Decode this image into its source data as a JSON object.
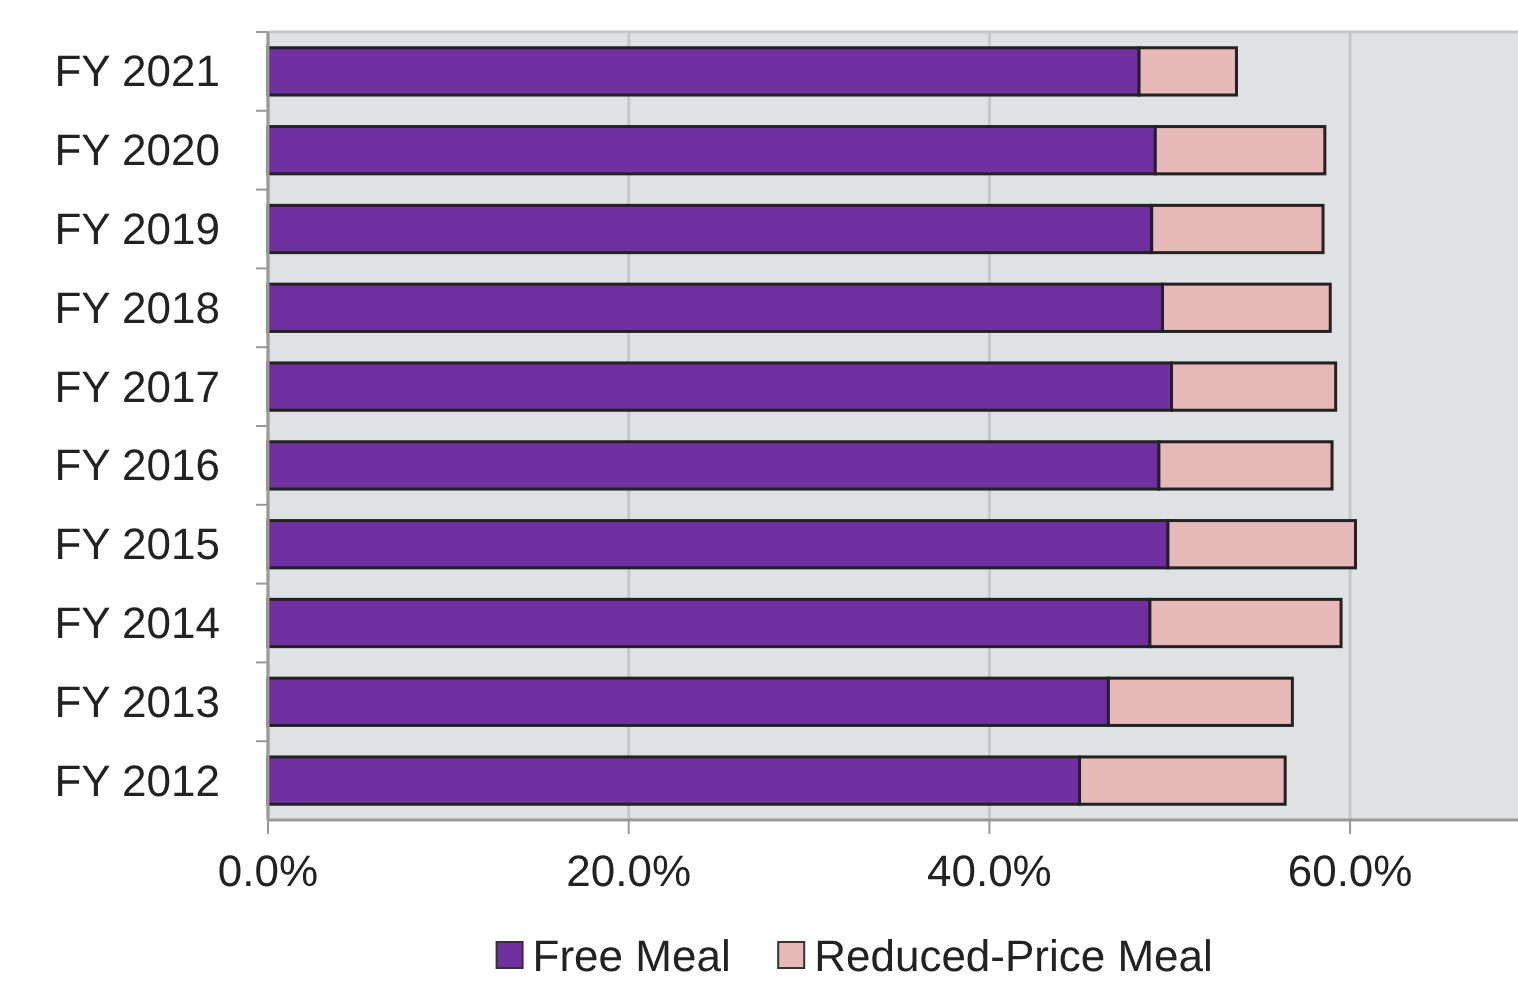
{
  "chart_data": {
    "type": "bar",
    "orientation": "horizontal",
    "stacked": true,
    "categories": [
      "FY 2021",
      "FY 2020",
      "FY 2019",
      "FY 2018",
      "FY 2017",
      "FY 2016",
      "FY 2015",
      "FY 2014",
      "FY 2013",
      "FY 2012"
    ],
    "series": [
      {
        "name": "Free Meal",
        "color": "#7030a0",
        "values": [
          48.3,
          49.2,
          49.0,
          49.6,
          50.1,
          49.4,
          49.9,
          48.9,
          46.6,
          45.0
        ]
      },
      {
        "name": "Reduced-Price Meal",
        "color": "#e6b9b8",
        "values": [
          5.4,
          9.4,
          9.5,
          9.3,
          9.1,
          9.6,
          10.4,
          10.6,
          10.2,
          11.4
        ]
      }
    ],
    "xlim": [
      0,
      69.2
    ],
    "xticks": [
      {
        "value": 0,
        "label": "0.0%"
      },
      {
        "value": 20,
        "label": "20.0%"
      },
      {
        "value": 40,
        "label": "40.0%"
      },
      {
        "value": 60,
        "label": "60.0%"
      }
    ],
    "grid": "x",
    "legend": "bottom"
  }
}
